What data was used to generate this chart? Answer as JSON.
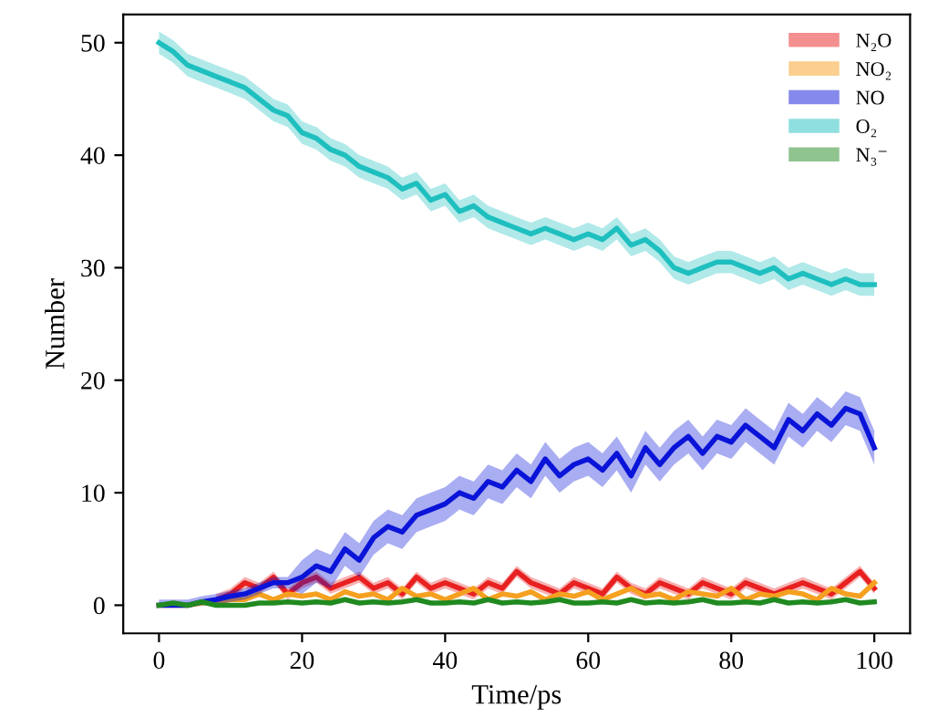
{
  "chart_data": {
    "type": "line",
    "xlabel": "Time/ps",
    "ylabel": "Number",
    "x": [
      0,
      2,
      4,
      6,
      8,
      10,
      12,
      14,
      16,
      18,
      20,
      22,
      24,
      26,
      28,
      30,
      32,
      34,
      36,
      38,
      40,
      42,
      44,
      46,
      48,
      50,
      52,
      54,
      56,
      58,
      60,
      62,
      64,
      66,
      68,
      70,
      72,
      74,
      76,
      78,
      80,
      82,
      84,
      86,
      88,
      90,
      92,
      94,
      96,
      98,
      100
    ],
    "xlim": [
      -5,
      105
    ],
    "xticks": [
      0,
      20,
      40,
      60,
      80,
      100
    ],
    "ylim": [
      -2.5,
      52.5
    ],
    "yticks": [
      0,
      10,
      20,
      30,
      40,
      50
    ],
    "grid": false,
    "legend": "top right",
    "marker": "none",
    "line_style": "solid",
    "series": [
      {
        "name": "N₂O",
        "color": "#e82020",
        "values": [
          null,
          null,
          null,
          null,
          0.5,
          1,
          2,
          1.5,
          2.5,
          1,
          2,
          2.5,
          1.5,
          2,
          2.5,
          1.5,
          2,
          1,
          2.5,
          1.5,
          2,
          1.5,
          1,
          2,
          1.5,
          3,
          2,
          1.5,
          1,
          2,
          1.5,
          1,
          2.5,
          1.5,
          1,
          2,
          1.5,
          1,
          2,
          1.5,
          1,
          2,
          1.5,
          1,
          1.5,
          2,
          1.5,
          1,
          2,
          3,
          1.5
        ],
        "lower": [
          null,
          null,
          null,
          null,
          0,
          0.5,
          1.5,
          1,
          2,
          0.5,
          1.5,
          2,
          1,
          1.5,
          2,
          1,
          1.5,
          0.5,
          2,
          1,
          1.5,
          1,
          0.5,
          1.5,
          1,
          2.5,
          1.5,
          1,
          0.5,
          1.5,
          1,
          0.5,
          2,
          1,
          0.5,
          1.5,
          1,
          0.5,
          1.5,
          1,
          0.5,
          1.5,
          1,
          0.5,
          1,
          1.5,
          1,
          0.5,
          1.5,
          2.5,
          1
        ],
        "upper": [
          null,
          null,
          null,
          null,
          1,
          1.5,
          2.5,
          2,
          3,
          1.5,
          2.5,
          3,
          2,
          2.5,
          3,
          2,
          2.5,
          1.5,
          3,
          2,
          2.5,
          2,
          1.5,
          2.5,
          2,
          3.5,
          2.5,
          2,
          1.5,
          2.5,
          2,
          1.5,
          3,
          2,
          1.5,
          2.5,
          2,
          1.5,
          2.5,
          2,
          1.5,
          2.5,
          2,
          1.5,
          2,
          2.5,
          2,
          1.5,
          2.5,
          3.5,
          2
        ]
      },
      {
        "name": "NO₂",
        "color": "#f5a020",
        "values": [
          0,
          0,
          0,
          0.2,
          0.3,
          0.5,
          0.5,
          1,
          0.5,
          1,
          0.8,
          1,
          0.5,
          1.2,
          0.8,
          1,
          0.5,
          1.5,
          0.8,
          1,
          0.5,
          1,
          1.5,
          0.5,
          1,
          0.8,
          1.2,
          0.5,
          1,
          0.8,
          1.2,
          0.5,
          1,
          1.5,
          0.8,
          1,
          0.5,
          1.2,
          1,
          0.8,
          1.5,
          0.5,
          1,
          0.8,
          1.2,
          1,
          0.5,
          1.5,
          1,
          0.8,
          2
        ]
      },
      {
        "name": "NO",
        "color": "#0a14d8",
        "values": [
          0,
          0,
          0,
          0.3,
          0.5,
          0.8,
          1,
          1.5,
          2,
          2,
          2.5,
          3.5,
          3,
          5,
          4,
          6,
          7,
          6.5,
          8,
          8.5,
          9,
          10,
          9.5,
          11,
          10.5,
          12,
          11,
          13,
          11.5,
          12.5,
          13,
          12,
          13.5,
          11.5,
          14,
          12.5,
          14,
          15,
          13.5,
          15,
          14.5,
          16,
          15,
          14,
          16.5,
          15.5,
          17,
          16,
          17.5,
          17,
          14
        ],
        "lower": [
          0,
          0,
          0,
          0,
          0,
          0.3,
          0.5,
          1,
          1.5,
          1.5,
          1,
          2,
          1.5,
          3.5,
          2.5,
          4.5,
          5.5,
          5,
          6.5,
          7,
          7.5,
          8.5,
          8,
          9.5,
          9,
          10.5,
          9.5,
          11.5,
          10,
          11,
          11.5,
          10.5,
          12,
          10,
          12.5,
          11,
          12.5,
          13.5,
          12,
          13.5,
          13,
          14.5,
          13.5,
          12.5,
          15,
          14,
          15.5,
          14.5,
          16,
          15.5,
          12.5
        ],
        "upper": [
          0.5,
          0.5,
          0.5,
          0.8,
          1,
          1.3,
          1.5,
          2,
          2.5,
          2.5,
          4,
          5,
          4.5,
          6.5,
          5.5,
          7.5,
          8.5,
          8,
          9.5,
          10,
          10.5,
          11.5,
          11,
          12.5,
          12,
          13.5,
          12.5,
          14.5,
          13,
          14,
          14.5,
          13.5,
          15,
          13,
          15.5,
          14,
          15.5,
          16.5,
          15,
          16.5,
          16,
          17.5,
          16.5,
          15.5,
          18,
          17,
          18.5,
          17.5,
          19,
          18.5,
          15.5
        ]
      },
      {
        "name": "O₂",
        "color": "#1fbfbf",
        "values": [
          50,
          49.2,
          48,
          47.5,
          47,
          46.5,
          46,
          45,
          44,
          43.5,
          42,
          41.5,
          40.5,
          40,
          39,
          38.5,
          38,
          37,
          37.5,
          36,
          36.5,
          35,
          35.5,
          34.5,
          34,
          33.5,
          33,
          33.5,
          33,
          32.5,
          33,
          32.5,
          33.5,
          32,
          32.5,
          31.5,
          30,
          29.5,
          30,
          30.5,
          30.5,
          30,
          29.5,
          30,
          29,
          29.5,
          29,
          28.5,
          29,
          28.5,
          28.5
        ],
        "lower": [
          49,
          48.2,
          47,
          46.5,
          46,
          45.5,
          45,
          44,
          43,
          42.5,
          41,
          40.5,
          39.5,
          39,
          38,
          37.5,
          37,
          36,
          36.5,
          35,
          35.5,
          34,
          34.5,
          33.5,
          33,
          32.5,
          32,
          32.5,
          32,
          31.5,
          32,
          31.5,
          32.5,
          31,
          31.5,
          30.5,
          29,
          28.5,
          29,
          29.5,
          29.5,
          29,
          28.5,
          29,
          28,
          28.5,
          28,
          27.5,
          28,
          27.5,
          27.5
        ],
        "upper": [
          51,
          50.2,
          49,
          48.5,
          48,
          47.5,
          47,
          46,
          45,
          44.5,
          43,
          42.5,
          41.5,
          41,
          40,
          39.5,
          39,
          38,
          38.5,
          37,
          37.5,
          36,
          36.5,
          35.5,
          35,
          34.5,
          34,
          34.5,
          34,
          33.5,
          34,
          33.5,
          34.5,
          33,
          33.5,
          32.5,
          31,
          30.5,
          31,
          31.5,
          31.5,
          31,
          30.5,
          31,
          30,
          30.5,
          30,
          29.5,
          30,
          29.5,
          29.5
        ]
      },
      {
        "name": "N₃⁻",
        "color": "#208a20",
        "values": [
          0,
          0.2,
          0,
          0.3,
          0,
          0,
          0,
          0.2,
          0.2,
          0.3,
          0.2,
          0.3,
          0.2,
          0.5,
          0.2,
          0.3,
          0.2,
          0.3,
          0.5,
          0.2,
          0.2,
          0.3,
          0.2,
          0.5,
          0.2,
          0.3,
          0.2,
          0.3,
          0.5,
          0.2,
          0.2,
          0.3,
          0.2,
          0.5,
          0.2,
          0.3,
          0.2,
          0.3,
          0.5,
          0.2,
          0.2,
          0.3,
          0.2,
          0.5,
          0.2,
          0.3,
          0.2,
          0.3,
          0.5,
          0.2,
          0.3
        ]
      }
    ]
  }
}
